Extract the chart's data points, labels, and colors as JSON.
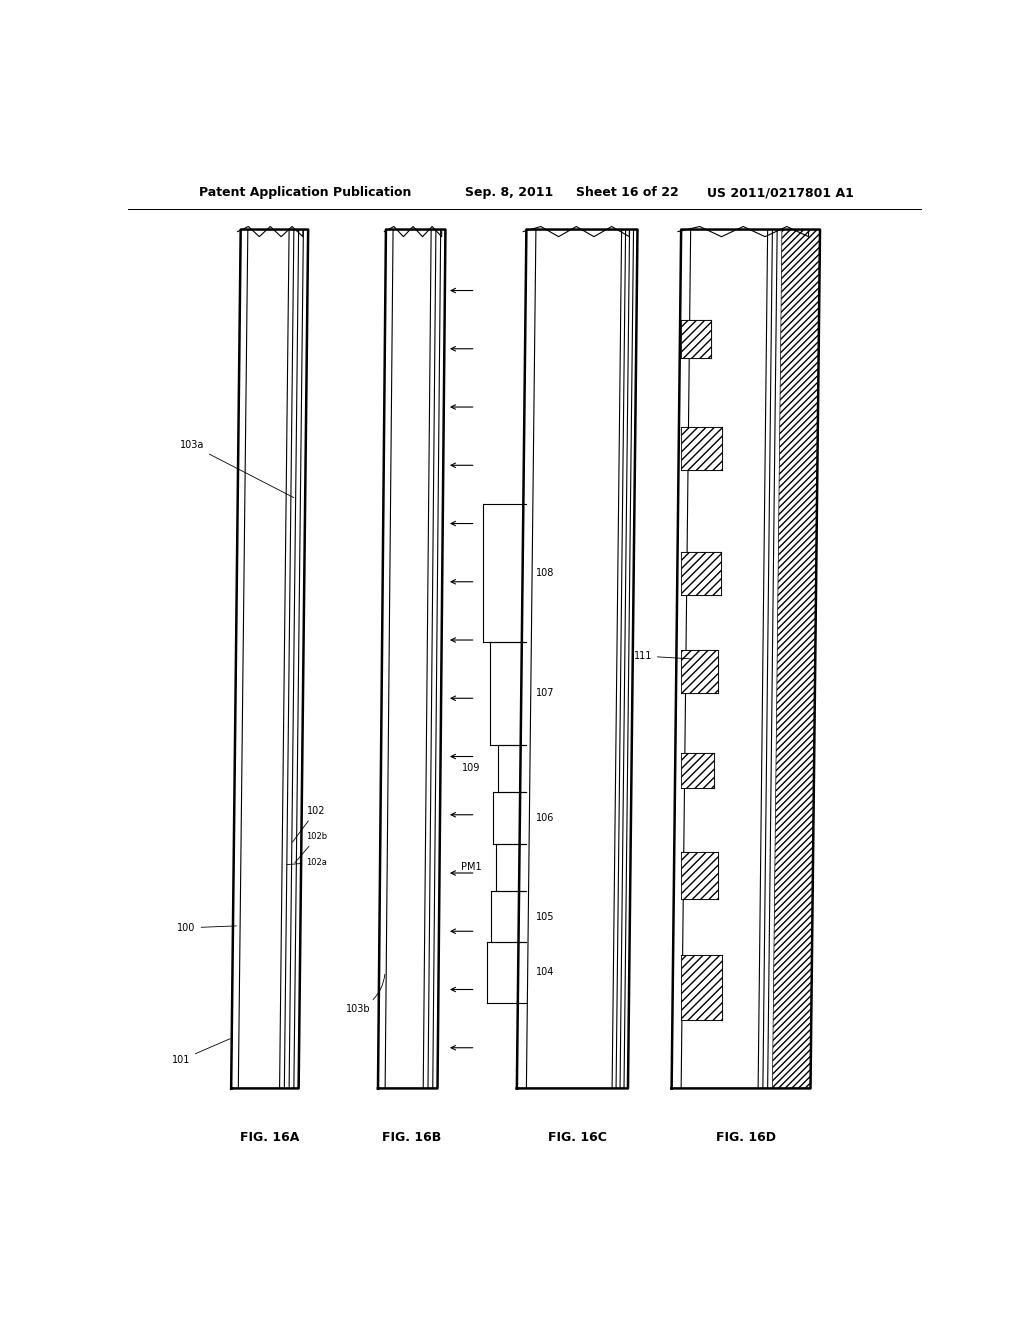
{
  "bg_color": "#ffffff",
  "header_text": "Patent Application Publication",
  "header_date": "Sep. 8, 2011",
  "header_sheet": "Sheet 16 of 22",
  "header_patent": "US 2011/0217801 A1",
  "line_color": "#000000",
  "lw_thin": 0.8,
  "lw_med": 1.2,
  "lw_thick": 1.8,
  "fig16A": {
    "xl": 0.13,
    "xr": 0.215,
    "ybot": 0.085,
    "ytop": 0.93,
    "tilt": 0.012,
    "label": "FIG. 16A"
  },
  "fig16B": {
    "xl": 0.315,
    "xr": 0.39,
    "ybot": 0.085,
    "ytop": 0.93,
    "tilt": 0.01,
    "label": "FIG. 16B"
  },
  "fig16C": {
    "xl": 0.49,
    "xr": 0.63,
    "ybot": 0.085,
    "ytop": 0.93,
    "tilt": 0.012,
    "label": "FIG. 16C"
  },
  "fig16D": {
    "xl": 0.685,
    "xr": 0.86,
    "ybot": 0.085,
    "ytop": 0.93,
    "tilt": 0.012,
    "label": "FIG. 16D"
  }
}
